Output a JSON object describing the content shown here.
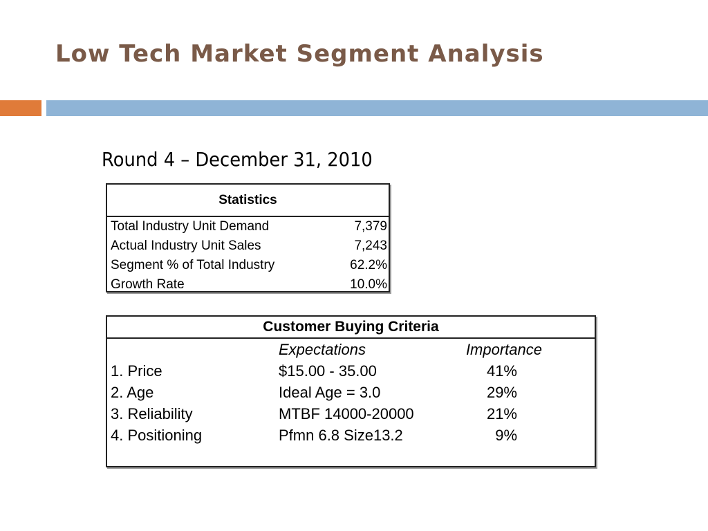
{
  "slide": {
    "title": "Low Tech Market Segment Analysis",
    "subtitle": "Round 4 – December 31, 2010",
    "accent_colors": {
      "title": "#7a5a48",
      "orange_bar": "#e07b39",
      "blue_bar": "#8fb4d6"
    }
  },
  "statistics": {
    "header": "Statistics",
    "rows": [
      {
        "label": "Total Industry Unit Demand",
        "value": "7,379"
      },
      {
        "label": "Actual Industry Unit Sales",
        "value": "7,243"
      },
      {
        "label": "Segment % of Total Industry",
        "value": "62.2%"
      },
      {
        "label": "Growth Rate",
        "value": "10.0%"
      }
    ]
  },
  "criteria": {
    "header": "Customer Buying Criteria",
    "col_expectations": "Expectations",
    "col_importance": "Importance",
    "rows": [
      {
        "criterion": "1. Price",
        "expectation": "$15.00 - 35.00",
        "importance": "41%"
      },
      {
        "criterion": "2. Age",
        "expectation": "Ideal Age = 3.0",
        "importance": "29%"
      },
      {
        "criterion": "3. Reliability",
        "expectation": "MTBF 14000-20000",
        "importance": "21%"
      },
      {
        "criterion": "4. Positioning",
        "expectation": "Pfmn 6.8 Size13.2",
        "importance": "9%"
      }
    ]
  }
}
